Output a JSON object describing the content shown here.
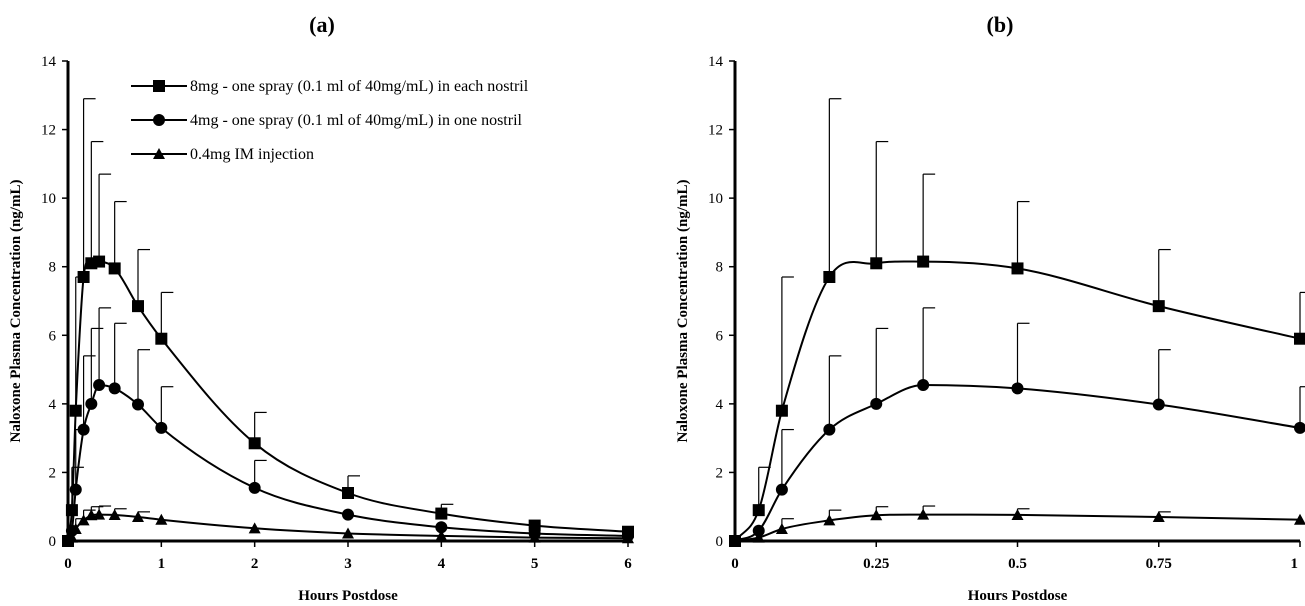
{
  "chart_data": [
    {
      "type": "line",
      "panel_label": "(a)",
      "xlabel": "Hours Postdose",
      "ylabel": "Naloxone Plasma Concentration (ng/mL)",
      "xlim": [
        0,
        6
      ],
      "ylim": [
        0,
        14
      ],
      "xticks": [
        0,
        1,
        2,
        3,
        4,
        5,
        6
      ],
      "xtick_labels": [
        "0",
        "1",
        "2",
        "3",
        "4",
        "5",
        "6"
      ],
      "yticks": [
        0,
        2,
        4,
        6,
        8,
        10,
        12,
        14
      ],
      "ytick_labels": [
        "0",
        "2",
        "4",
        "6",
        "8",
        "10",
        "12",
        "14"
      ],
      "grid": false,
      "legend_position": "top-right",
      "series": [
        {
          "name": "8mg - one spray (0.1 ml of 40mg/mL) in each nostril",
          "marker": "square",
          "x": [
            0,
            0.042,
            0.083,
            0.167,
            0.25,
            0.333,
            0.5,
            0.75,
            1,
            2,
            3,
            4,
            5,
            6
          ],
          "y": [
            0,
            0.9,
            3.8,
            7.7,
            8.1,
            8.15,
            7.95,
            6.85,
            5.9,
            2.85,
            1.4,
            0.8,
            0.45,
            0.27
          ],
          "error": [
            0,
            1.25,
            3.9,
            5.2,
            3.55,
            2.55,
            1.95,
            1.65,
            1.35,
            0.9,
            0.5,
            0.27,
            0,
            0
          ]
        },
        {
          "name": "4mg - one spray (0.1 ml of 40mg/mL) in one nostril",
          "marker": "circle",
          "x": [
            0,
            0.042,
            0.083,
            0.167,
            0.25,
            0.333,
            0.5,
            0.75,
            1,
            2,
            3,
            4,
            5,
            6
          ],
          "y": [
            0,
            0.3,
            1.5,
            3.25,
            4.0,
            4.55,
            4.45,
            3.98,
            3.3,
            1.55,
            0.77,
            0.4,
            0.22,
            0.15
          ],
          "error": [
            0,
            0,
            1.75,
            2.15,
            2.2,
            2.25,
            1.9,
            1.6,
            1.2,
            0.8,
            0,
            0,
            0,
            0
          ]
        },
        {
          "name": "0.4mg IM injection",
          "marker": "triangle",
          "x": [
            0,
            0.042,
            0.083,
            0.167,
            0.25,
            0.333,
            0.5,
            0.75,
            1,
            2,
            3,
            4,
            5,
            6
          ],
          "y": [
            0,
            0.1,
            0.35,
            0.6,
            0.75,
            0.77,
            0.76,
            0.7,
            0.62,
            0.37,
            0.22,
            0.15,
            0.1,
            0.08
          ],
          "error": [
            0,
            0,
            0.3,
            0.3,
            0.25,
            0.25,
            0.18,
            0.15,
            0,
            0,
            0,
            0,
            0,
            0
          ]
        }
      ]
    },
    {
      "type": "line",
      "panel_label": "(b)",
      "xlabel": "Hours Postdose",
      "ylabel": "Naloxone Plasma Concentration (ng/mL)",
      "xlim": [
        0,
        1
      ],
      "ylim": [
        0,
        14
      ],
      "xticks": [
        0,
        0.25,
        0.5,
        0.75,
        1
      ],
      "xtick_labels": [
        "0",
        "0.25",
        "0.5",
        "0.75",
        "1"
      ],
      "yticks": [
        0,
        2,
        4,
        6,
        8,
        10,
        12,
        14
      ],
      "ytick_labels": [
        "0",
        "2",
        "4",
        "6",
        "8",
        "10",
        "12",
        "14"
      ],
      "grid": false,
      "series": [
        {
          "marker": "square",
          "x": [
            0,
            0.042,
            0.083,
            0.167,
            0.25,
            0.333,
            0.5,
            0.75,
            1
          ],
          "y": [
            0,
            0.9,
            3.8,
            7.7,
            8.1,
            8.15,
            7.95,
            6.85,
            5.9
          ],
          "error": [
            0,
            1.25,
            3.9,
            5.2,
            3.55,
            2.55,
            1.95,
            1.65,
            1.35
          ]
        },
        {
          "marker": "circle",
          "x": [
            0,
            0.042,
            0.083,
            0.167,
            0.25,
            0.333,
            0.5,
            0.75,
            1
          ],
          "y": [
            0,
            0.3,
            1.5,
            3.25,
            4.0,
            4.55,
            4.45,
            3.98,
            3.3
          ],
          "error": [
            0,
            0,
            1.75,
            2.15,
            2.2,
            2.25,
            1.9,
            1.6,
            1.2
          ]
        },
        {
          "marker": "triangle",
          "x": [
            0,
            0.042,
            0.083,
            0.167,
            0.25,
            0.333,
            0.5,
            0.75,
            1
          ],
          "y": [
            0,
            0.1,
            0.35,
            0.6,
            0.75,
            0.77,
            0.76,
            0.7,
            0.62
          ],
          "error": [
            0,
            0,
            0.3,
            0.3,
            0.25,
            0.25,
            0.18,
            0.15,
            0
          ]
        }
      ]
    }
  ],
  "colors": {
    "ink": "#000000",
    "background": "#ffffff"
  }
}
